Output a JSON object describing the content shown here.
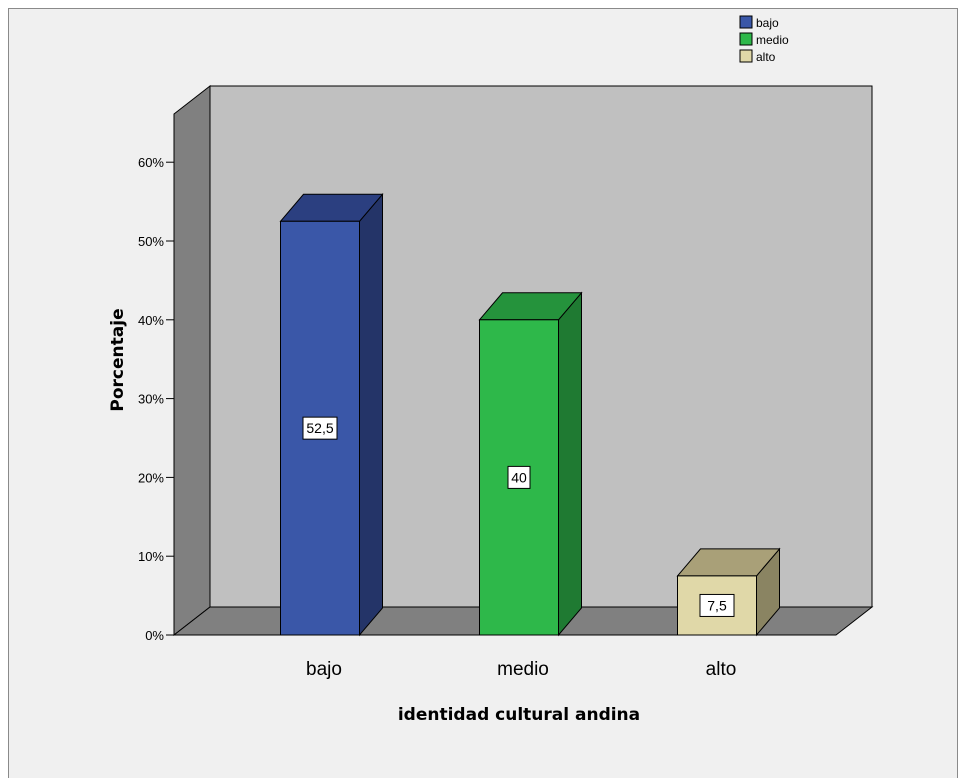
{
  "chart_data": {
    "type": "bar",
    "categories": [
      "bajo",
      "medio",
      "alto"
    ],
    "values": [
      52.5,
      40,
      7.5
    ],
    "data_labels": [
      "52,5",
      "40",
      "7,5"
    ],
    "xlabel": "identidad cultural andina",
    "ylabel": "Porcentaje",
    "ylim": [
      0,
      60
    ],
    "yticks": [
      "0%",
      "10%",
      "20%",
      "30%",
      "40%",
      "50%",
      "60%"
    ],
    "legend": {
      "placement": "top-right",
      "entries": [
        "bajo",
        "medio",
        "alto"
      ]
    },
    "colors": {
      "bajo": {
        "front": "#3a57a8",
        "side": "#243468",
        "top": "#2b3f80"
      },
      "medio": {
        "front": "#2eb84a",
        "side": "#1f7a32",
        "top": "#25933c"
      },
      "alto": {
        "front": "#e0d8a8",
        "side": "#8a8462",
        "top": "#a9a078"
      },
      "backwall": "#c0c0c0",
      "sidewall": "#808080",
      "floor": "#808080",
      "background": "#f0f0f0"
    },
    "grid": false,
    "three_d": true
  }
}
